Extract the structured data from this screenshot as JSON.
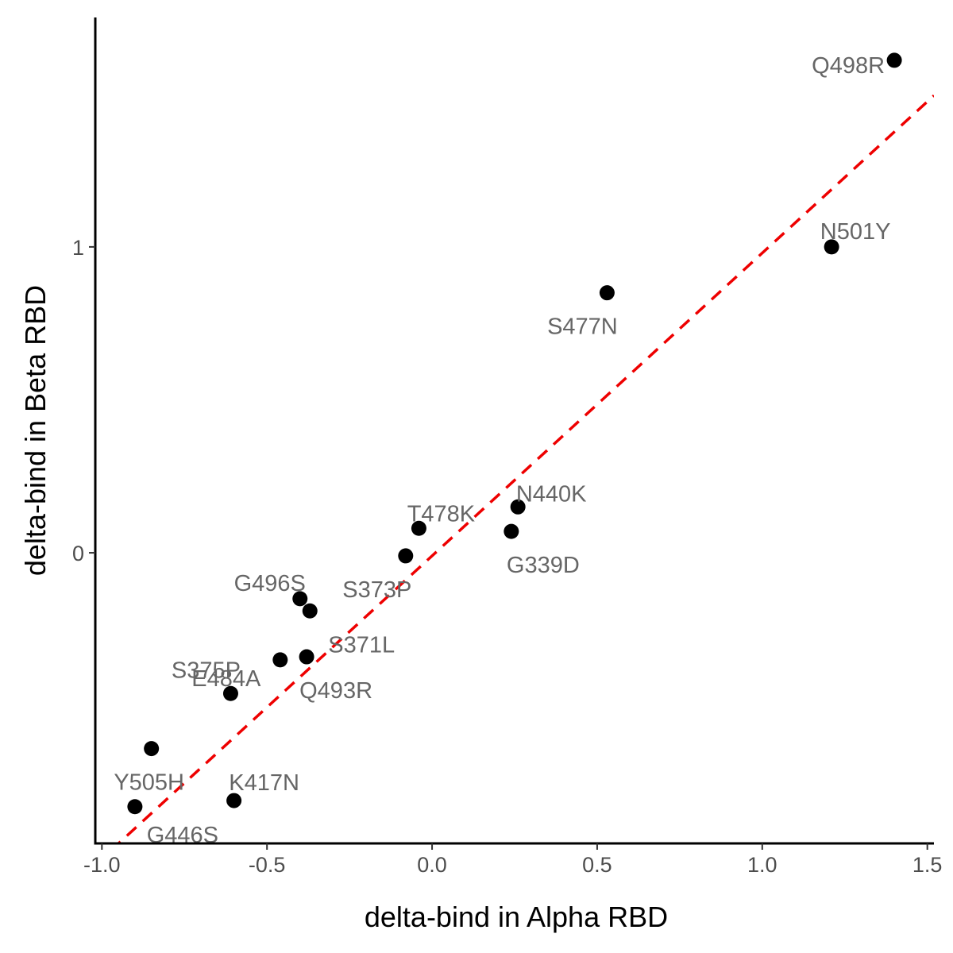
{
  "chart_data": {
    "type": "scatter",
    "xlabel": "delta-bind in Alpha RBD",
    "ylabel": "delta-bind in Beta RBD",
    "xlim": [
      -1.02,
      1.52
    ],
    "ylim": [
      -0.95,
      1.75
    ],
    "x_ticks": [
      {
        "value": -1.0,
        "label": "-1.0"
      },
      {
        "value": -0.5,
        "label": "-0.5"
      },
      {
        "value": 0.0,
        "label": "0.0"
      },
      {
        "value": 0.5,
        "label": "0.5"
      },
      {
        "value": 1.0,
        "label": "1.0"
      },
      {
        "value": 1.5,
        "label": "1.5"
      }
    ],
    "y_ticks": [
      {
        "value": 0,
        "label": "0"
      },
      {
        "value": 1,
        "label": "1"
      }
    ],
    "grid": false,
    "reference_line": {
      "style": "dashed",
      "color": "#ee0000",
      "slope": 0.99,
      "intercept": -0.01
    },
    "points": [
      {
        "label": "Q498R",
        "x": 1.4,
        "y": 1.61
      },
      {
        "label": "N501Y",
        "x": 1.21,
        "y": 1.0
      },
      {
        "label": "S477N",
        "x": 0.53,
        "y": 0.85
      },
      {
        "label": "N440K",
        "x": 0.26,
        "y": 0.15
      },
      {
        "label": "G339D",
        "x": 0.24,
        "y": 0.07
      },
      {
        "label": "T478K",
        "x": -0.04,
        "y": 0.08
      },
      {
        "label": "S373P",
        "x": -0.08,
        "y": -0.01
      },
      {
        "label": "G496S",
        "x": -0.4,
        "y": -0.15
      },
      {
        "label": "S371L",
        "x": -0.37,
        "y": -0.19
      },
      {
        "label": "Q493R",
        "x": -0.38,
        "y": -0.34
      },
      {
        "label": "E484A",
        "x": -0.46,
        "y": -0.35
      },
      {
        "label": "S375P",
        "x": -0.61,
        "y": -0.46
      },
      {
        "label": "Y505H",
        "x": -0.85,
        "y": -0.64
      },
      {
        "label": "K417N",
        "x": -0.6,
        "y": -0.81
      },
      {
        "label": "G446S",
        "x": -0.9,
        "y": -0.83
      }
    ]
  }
}
